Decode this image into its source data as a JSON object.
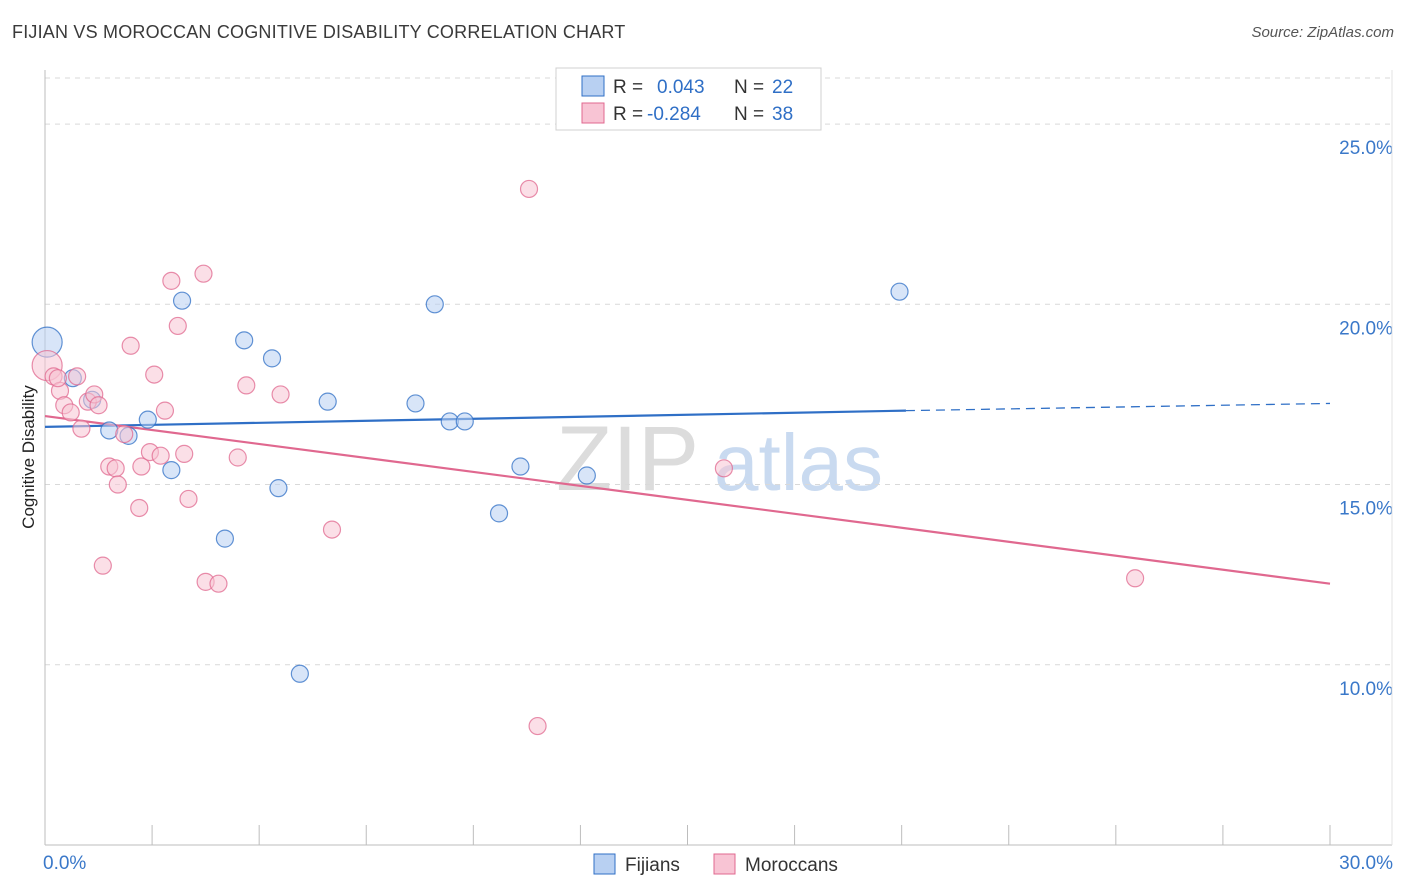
{
  "header": {
    "title": "FIJIAN VS MOROCCAN COGNITIVE DISABILITY CORRELATION CHART",
    "source": "Source: ZipAtlas.com"
  },
  "watermark": {
    "zip": "ZIP",
    "atlas": "atlas"
  },
  "colors": {
    "fijians": "#2f6fc6",
    "fijians_fill": "#b8d0f2",
    "moroccans": "#e0688f",
    "moroccans_fill": "#f8c4d4",
    "grid": "#d9d9d9",
    "tick_label": "#3a78c9"
  },
  "legend": {
    "rows": [
      {
        "r_label": "R =",
        "r_value": "0.043",
        "n_label": "N =",
        "n_value": "22"
      },
      {
        "r_label": "R =",
        "r_value": "-0.284",
        "n_label": "N =",
        "n_value": "38"
      }
    ]
  },
  "bottom_legend": {
    "fijians": "Fijians",
    "moroccans": "Moroccans"
  },
  "chart_data": {
    "type": "scatter",
    "title": "FIJIAN VS MOROCCAN COGNITIVE DISABILITY CORRELATION CHART",
    "xlabel": "",
    "ylabel": "Cognitive Disability",
    "xlim": [
      0,
      30
    ],
    "ylim": [
      5,
      26.5
    ],
    "x_tick_labels": [
      "0.0%",
      "30.0%"
    ],
    "y_ticks": [
      10,
      15,
      20,
      25
    ],
    "y_tick_labels": [
      "10.0%",
      "15.0%",
      "20.0%",
      "25.0%"
    ],
    "grid": true,
    "series": [
      {
        "name": "Fijians",
        "r": 0.043,
        "n": 22,
        "trend": {
          "x0": 0,
          "y0": 16.6,
          "x1": 20.1,
          "y1": 17.05,
          "x_dashed_end": 30,
          "y_dashed_end": 17.25
        },
        "points": [
          {
            "x": 0.05,
            "y": 18.95,
            "big": true
          },
          {
            "x": 0.65,
            "y": 17.95
          },
          {
            "x": 1.1,
            "y": 17.35
          },
          {
            "x": 1.5,
            "y": 16.5
          },
          {
            "x": 1.95,
            "y": 16.35
          },
          {
            "x": 2.4,
            "y": 16.8
          },
          {
            "x": 2.95,
            "y": 15.4
          },
          {
            "x": 3.2,
            "y": 20.1
          },
          {
            "x": 4.2,
            "y": 13.5
          },
          {
            "x": 4.65,
            "y": 19.0
          },
          {
            "x": 5.3,
            "y": 18.5
          },
          {
            "x": 5.45,
            "y": 14.9
          },
          {
            "x": 5.95,
            "y": 9.75
          },
          {
            "x": 6.6,
            "y": 17.3
          },
          {
            "x": 8.65,
            "y": 17.25
          },
          {
            "x": 9.1,
            "y": 20.0
          },
          {
            "x": 9.45,
            "y": 16.75
          },
          {
            "x": 9.8,
            "y": 16.75
          },
          {
            "x": 10.6,
            "y": 14.2
          },
          {
            "x": 11.1,
            "y": 15.5
          },
          {
            "x": 12.65,
            "y": 15.25
          },
          {
            "x": 19.95,
            "y": 20.35
          }
        ]
      },
      {
        "name": "Moroccans",
        "r": -0.284,
        "n": 38,
        "trend": {
          "x0": 0,
          "y0": 16.9,
          "x1": 30,
          "y1": 12.25
        },
        "points": [
          {
            "x": 0.05,
            "y": 18.3,
            "big": true
          },
          {
            "x": 0.2,
            "y": 18.0
          },
          {
            "x": 0.35,
            "y": 17.6
          },
          {
            "x": 0.45,
            "y": 17.2
          },
          {
            "x": 0.6,
            "y": 17.0
          },
          {
            "x": 0.75,
            "y": 18.0
          },
          {
            "x": 0.85,
            "y": 16.55
          },
          {
            "x": 1.0,
            "y": 17.3
          },
          {
            "x": 1.15,
            "y": 17.5
          },
          {
            "x": 1.25,
            "y": 17.2
          },
          {
            "x": 1.35,
            "y": 12.75
          },
          {
            "x": 1.5,
            "y": 15.5
          },
          {
            "x": 1.65,
            "y": 15.45
          },
          {
            "x": 1.7,
            "y": 15.0
          },
          {
            "x": 1.85,
            "y": 16.4
          },
          {
            "x": 2.0,
            "y": 18.85
          },
          {
            "x": 2.2,
            "y": 14.35
          },
          {
            "x": 2.25,
            "y": 15.5
          },
          {
            "x": 2.45,
            "y": 15.9
          },
          {
            "x": 2.55,
            "y": 18.05
          },
          {
            "x": 2.7,
            "y": 15.8
          },
          {
            "x": 2.8,
            "y": 17.05
          },
          {
            "x": 2.95,
            "y": 20.65
          },
          {
            "x": 3.1,
            "y": 19.4
          },
          {
            "x": 3.25,
            "y": 15.85
          },
          {
            "x": 3.35,
            "y": 14.6
          },
          {
            "x": 3.7,
            "y": 20.85
          },
          {
            "x": 3.75,
            "y": 12.3
          },
          {
            "x": 4.05,
            "y": 12.25
          },
          {
            "x": 4.5,
            "y": 15.75
          },
          {
            "x": 4.7,
            "y": 17.75
          },
          {
            "x": 5.5,
            "y": 17.5
          },
          {
            "x": 6.7,
            "y": 13.75
          },
          {
            "x": 11.3,
            "y": 23.2
          },
          {
            "x": 11.5,
            "y": 8.3
          },
          {
            "x": 15.85,
            "y": 15.45
          },
          {
            "x": 25.45,
            "y": 12.4
          },
          {
            "x": 0.3,
            "y": 17.95
          }
        ]
      }
    ]
  }
}
